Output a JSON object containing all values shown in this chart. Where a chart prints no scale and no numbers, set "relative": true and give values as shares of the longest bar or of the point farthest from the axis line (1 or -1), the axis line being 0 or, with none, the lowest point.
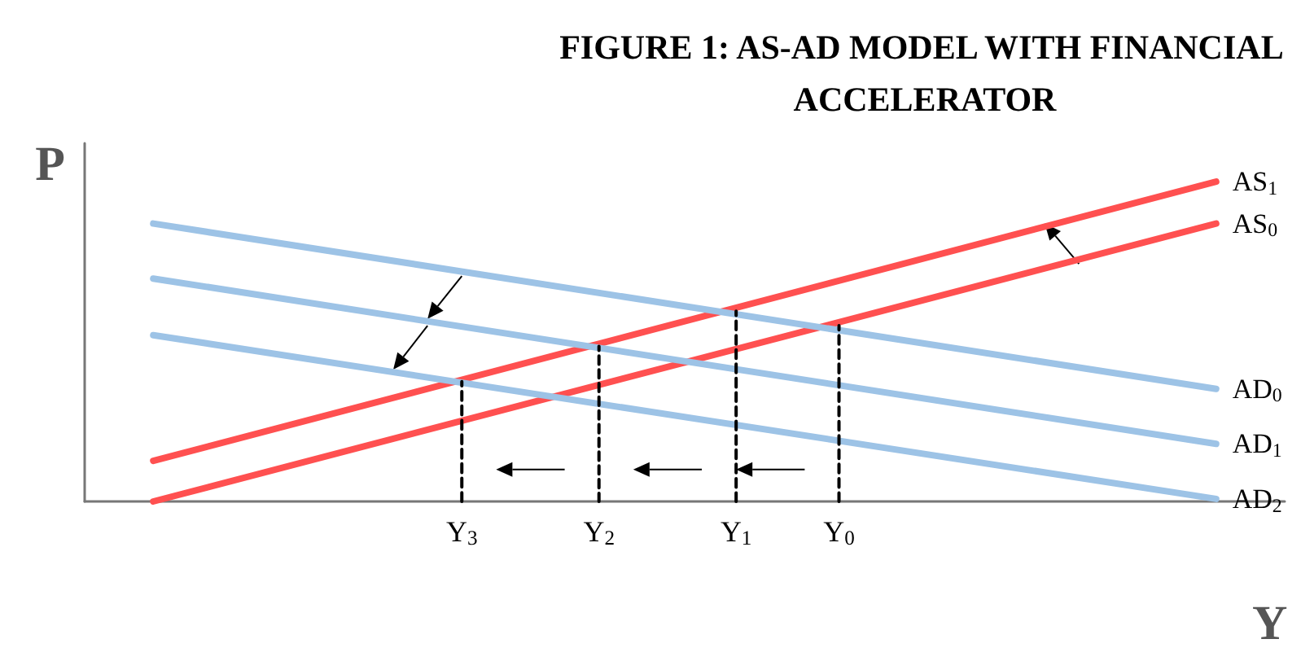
{
  "chart_data": {
    "type": "line",
    "title": "FIGURE 1: AS-AD MODEL WITH FINANCIAL ACCELERATOR",
    "xlabel": "Y",
    "ylabel": "P",
    "relative": true,
    "categories": [
      null,
      null,
      null,
      null,
      null,
      null,
      null,
      null,
      null,
      null,
      null,
      "Y$_{3}$",
      null,
      null,
      null,
      "Y$_{2}$",
      null,
      null,
      null,
      "Y$_{1}$",
      null,
      null,
      "Y$_{0}$",
      null,
      null,
      null,
      null,
      null,
      null,
      null,
      null,
      null,
      null,
      null,
      null,
      null
    ],
    "tick_labels": "x",
    "grid": false,
    "legend": false,
    "marker": "none",
    "series": [
      {
        "name": "AS$_{1}$",
        "color": "#ff5050",
        "values": [
          null,
          null,
          0.127,
          null,
          null,
          null,
          null,
          null,
          null,
          null,
          null,
          null,
          null,
          null,
          null,
          null,
          null,
          null,
          null,
          null,
          null,
          null,
          null,
          null,
          null,
          null,
          null,
          null,
          null,
          null,
          null,
          null,
          null,
          1,
          null,
          null
        ]
      },
      {
        "name": "AS$_{0}$",
        "color": "#ff5050",
        "values": [
          null,
          null,
          0,
          null,
          null,
          null,
          null,
          null,
          null,
          null,
          null,
          null,
          null,
          null,
          null,
          null,
          null,
          null,
          null,
          null,
          null,
          null,
          null,
          null,
          null,
          null,
          null,
          null,
          null,
          null,
          null,
          null,
          null,
          0.869,
          null,
          null
        ]
      },
      {
        "name": "AD$_{0}$",
        "color": "#9dc3e6",
        "values": [
          null,
          null,
          0.869,
          null,
          null,
          null,
          null,
          null,
          null,
          null,
          null,
          null,
          null,
          null,
          null,
          null,
          null,
          null,
          null,
          null,
          null,
          null,
          null,
          null,
          null,
          null,
          null,
          null,
          null,
          null,
          null,
          null,
          null,
          0.352,
          null,
          null
        ]
      },
      {
        "name": "AD$_{1}$",
        "color": "#9dc3e6",
        "values": [
          null,
          null,
          0.697,
          null,
          null,
          null,
          null,
          null,
          null,
          null,
          null,
          null,
          null,
          null,
          null,
          null,
          null,
          null,
          null,
          null,
          null,
          null,
          null,
          null,
          null,
          null,
          null,
          null,
          null,
          null,
          null,
          null,
          null,
          0.18,
          null,
          null
        ]
      },
      {
        "name": "AD$_{2}$",
        "color": "#9dc3e6",
        "values": [
          null,
          null,
          0.52,
          null,
          null,
          null,
          null,
          null,
          null,
          null,
          null,
          null,
          null,
          null,
          null,
          null,
          null,
          null,
          null,
          null,
          null,
          null,
          null,
          null,
          null,
          null,
          null,
          null,
          null,
          null,
          null,
          null,
          null,
          0.008,
          null,
          null
        ]
      },
      {
        "color": "#000000",
        "line_style": "dashed",
        "x": [
          "Y$_{3}$",
          "Y$_{3}$"
        ],
        "values": [
          0,
          0.375
        ]
      },
      {
        "color": "#000000",
        "line_style": "dashed",
        "x": [
          "Y$_{2}$",
          "Y$_{2}$"
        ],
        "values": [
          0,
          0.485
        ]
      },
      {
        "color": "#000000",
        "line_style": "dashed",
        "x": [
          "Y$_{1}$",
          "Y$_{1}$"
        ],
        "values": [
          0,
          0.595
        ]
      },
      {
        "color": "#000000",
        "line_style": "dashed",
        "x": [
          "Y$_{0}$",
          "Y$_{0}$"
        ],
        "values": [
          0,
          0.55
        ]
      }
    ]
  }
}
